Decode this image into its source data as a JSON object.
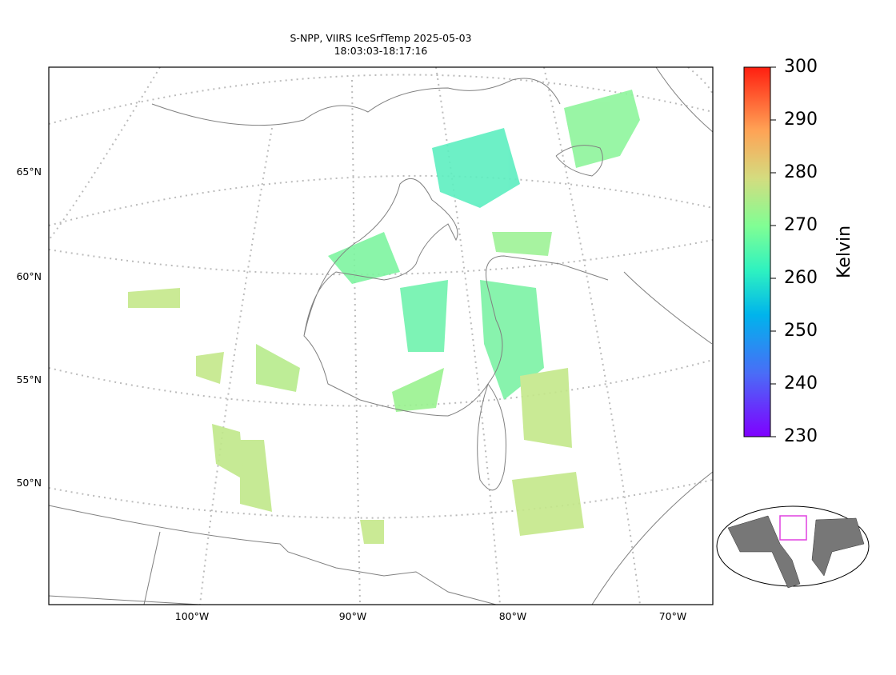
{
  "title": [
    "S-NPP, VIIRS IceSrfTemp 2025-05-03",
    "18:03:03-18:17:16"
  ],
  "map": {
    "lat_labels": [
      "65°N",
      "60°N",
      "55°N",
      "50°N"
    ],
    "lon_labels": [
      "100°W",
      "90°W",
      "80°W",
      "70°W"
    ]
  },
  "colorbar": {
    "label": "Kelvin",
    "lim": [
      230,
      300
    ],
    "ticks": [
      230,
      240,
      250,
      260,
      270,
      280,
      290,
      300
    ]
  }
}
